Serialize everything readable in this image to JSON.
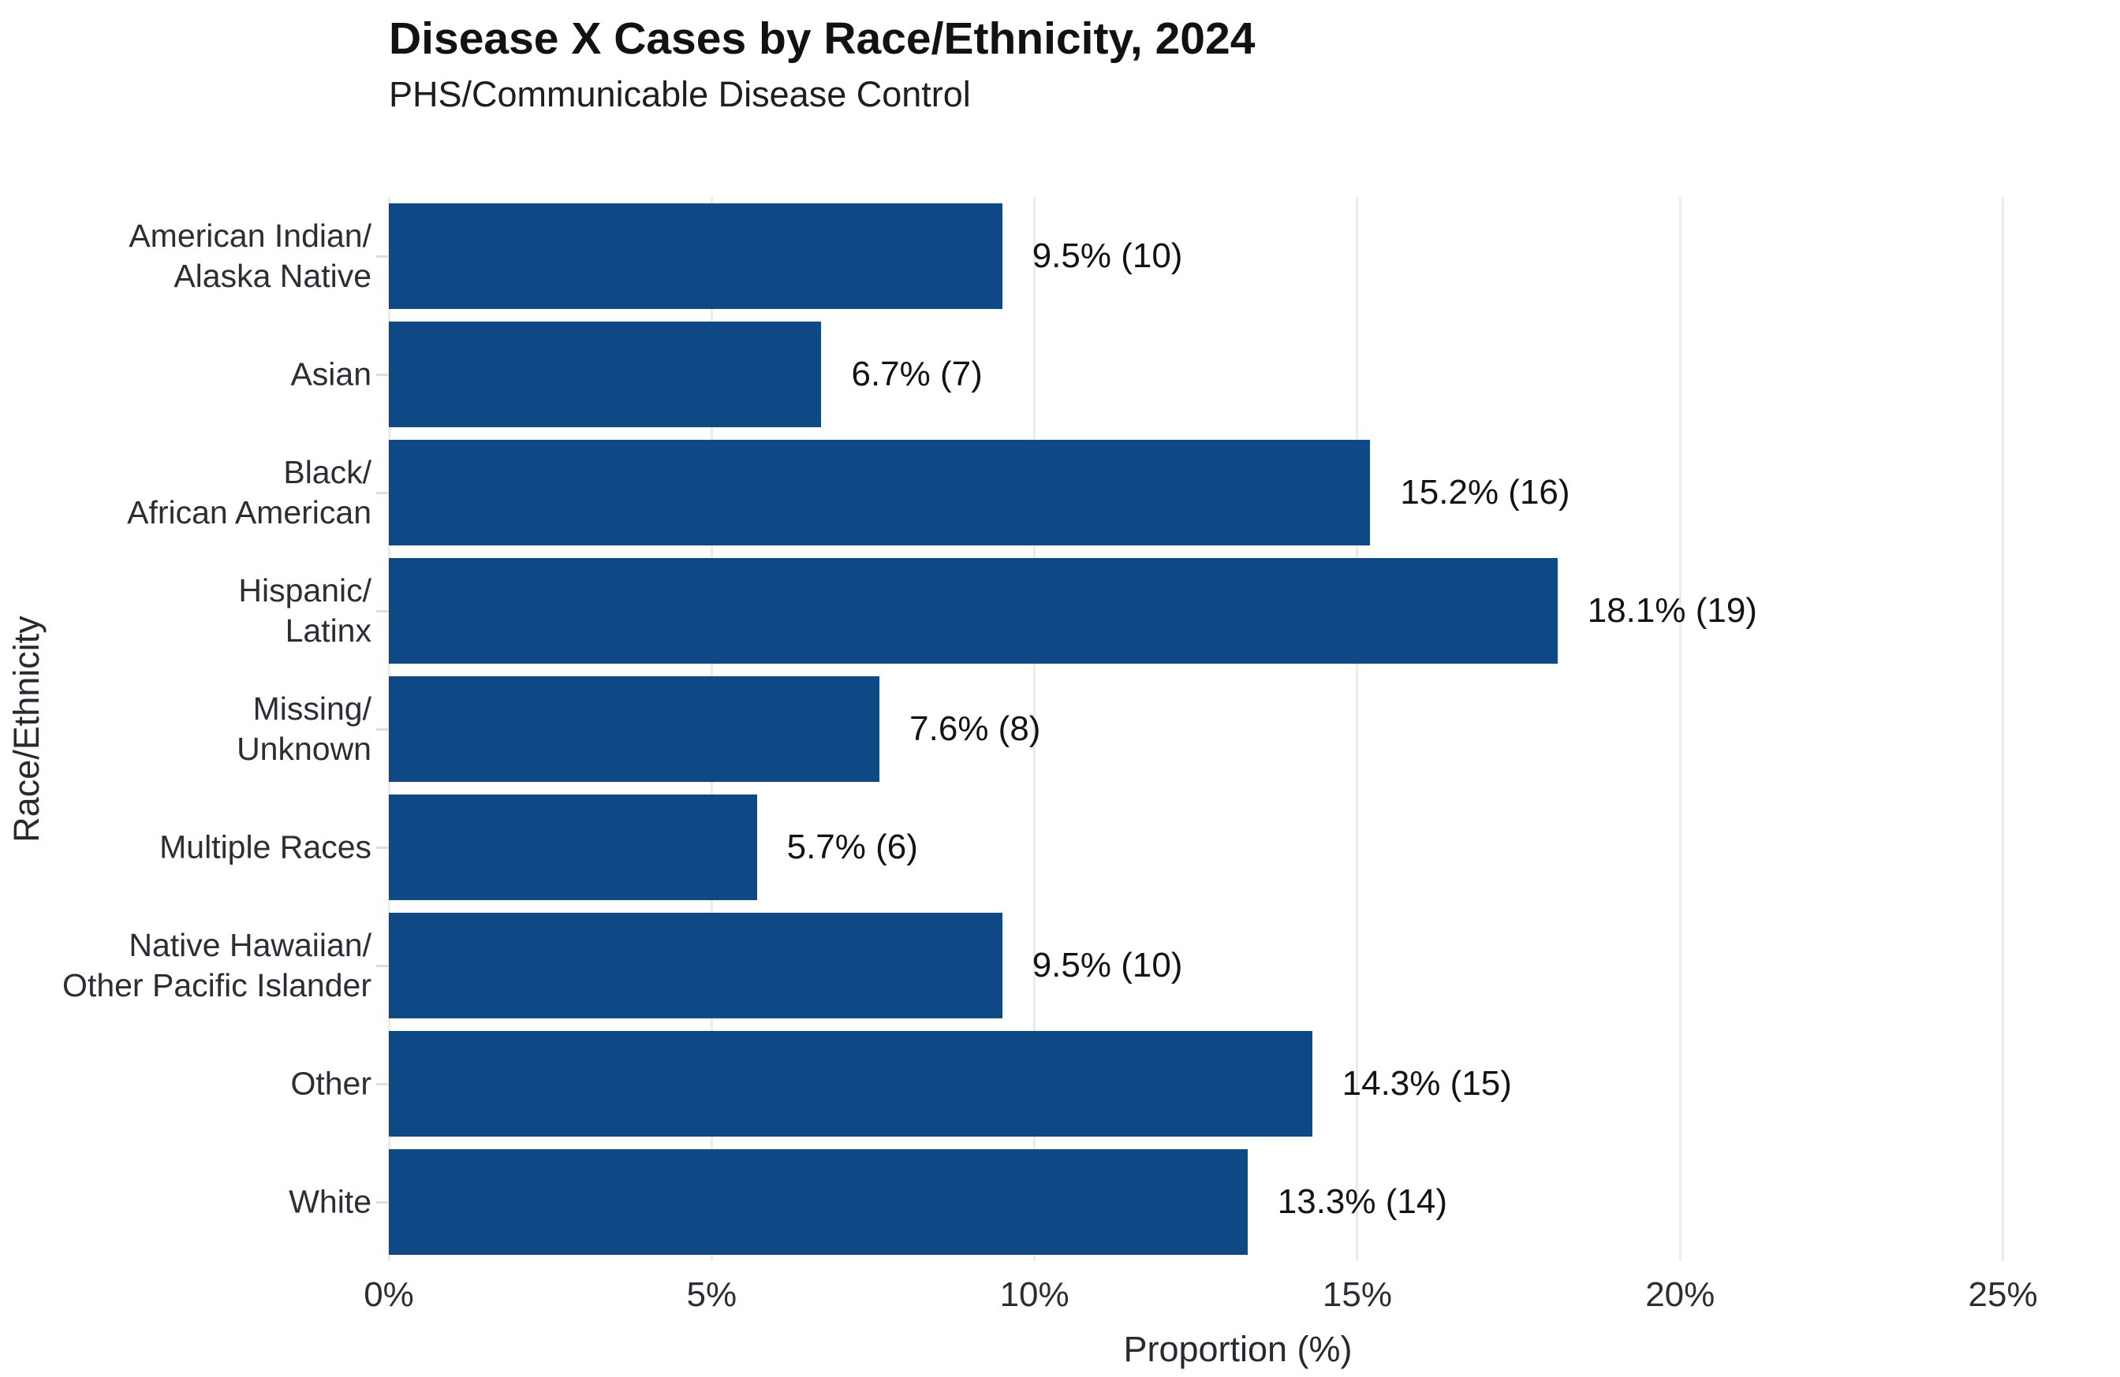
{
  "header": {
    "title": "Disease X Cases by Race/Ethnicity, 2024",
    "subtitle": "PHS/Communicable Disease Control"
  },
  "chart_data": {
    "type": "bar",
    "orientation": "horizontal",
    "title": "Disease X Cases by Race/Ethnicity, 2024",
    "subtitle": "PHS/Communicable Disease Control",
    "xlabel": "Proportion (%)",
    "ylabel": "Race/Ethnicity",
    "categories": [
      "American Indian/\nAlaska Native",
      "Asian",
      "Black/\nAfrican American",
      "Hispanic/\nLatinx",
      "Missing/\nUnknown",
      "Multiple Races",
      "Native Hawaiian/\nOther Pacific Islander",
      "Other",
      "White"
    ],
    "values_pct": [
      9.5,
      6.7,
      15.2,
      18.1,
      7.6,
      5.7,
      9.5,
      14.3,
      13.3
    ],
    "counts": [
      10,
      7,
      16,
      19,
      8,
      6,
      10,
      15,
      14
    ],
    "bar_labels": [
      "9.5% (10)",
      "6.7% (7)",
      "15.2% (16)",
      "18.1% (19)",
      "7.6% (8)",
      "5.7% (6)",
      "9.5% (10)",
      "14.3% (15)",
      "13.3% (14)"
    ],
    "x_tick_values": [
      0,
      5,
      10,
      15,
      20,
      25
    ],
    "x_tick_labels": [
      "0%",
      "5%",
      "10%",
      "15%",
      "20%",
      "25%"
    ],
    "xlim": [
      0,
      26.3
    ],
    "grid": "vertical-major-only",
    "legend": "none"
  },
  "colors": {
    "bar": "#0e4885",
    "grid": "#eaecec",
    "axis_text": "#2a2e35",
    "value_text": "#131313",
    "title_text": "#121212"
  }
}
